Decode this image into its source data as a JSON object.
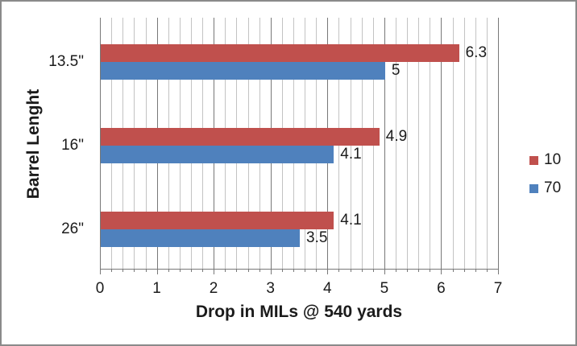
{
  "colors": {
    "series_red": "#C0504D",
    "series_blue": "#4F81BD",
    "major_gridline": "#787878",
    "minor_gridline": "#C3C3C3",
    "axis_line": "#787878",
    "chart_border": "#8A8A8A",
    "text": "#1b1b1b"
  },
  "chart_data": {
    "type": "bar",
    "orientation": "horizontal",
    "title": "",
    "ylabel": "Barrel Lenght",
    "xlabel": "Drop in MILs @ 540 yards",
    "categories": [
      "13.5\"",
      "16\"",
      "26\""
    ],
    "series": [
      {
        "name": "10",
        "color": "#C0504D",
        "values": [
          6.3,
          4.9,
          4.1
        ],
        "label_strings": [
          "6.3",
          "4.9",
          "4.1"
        ]
      },
      {
        "name": "70",
        "color": "#4F81BD",
        "values": [
          5,
          4.1,
          3.5
        ],
        "label_strings": [
          "5",
          "4.1",
          "3.5"
        ]
      }
    ],
    "xlim": [
      0,
      7
    ],
    "x_major_tick": 1,
    "x_minor_tick": 0.2,
    "x_tick_labels": [
      "0",
      "1",
      "2",
      "3",
      "4",
      "5",
      "6",
      "7"
    ],
    "grid": true,
    "data_labels": true,
    "legend_position": "right"
  }
}
